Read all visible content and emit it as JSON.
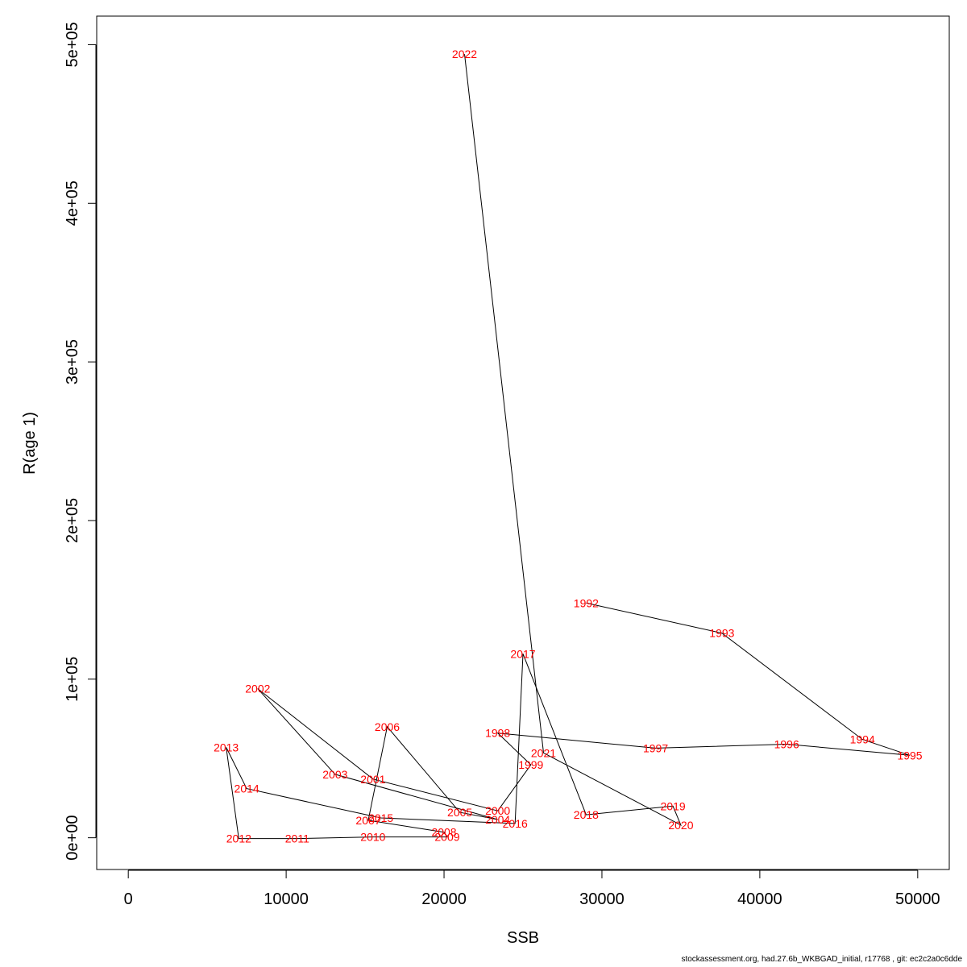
{
  "chart_data": {
    "type": "line",
    "xlabel": "SSB",
    "ylabel": "R(age 1)",
    "xlim": [
      -2000,
      52000
    ],
    "ylim": [
      -20000,
      518000
    ],
    "x_ticks": [
      0,
      10000,
      20000,
      30000,
      40000,
      50000
    ],
    "x_tick_labels": [
      "0",
      "10000",
      "20000",
      "30000",
      "40000",
      "50000"
    ],
    "y_ticks": [
      0,
      100000,
      200000,
      300000,
      400000,
      500000
    ],
    "y_tick_labels": [
      "0e+00",
      "1e+05",
      "2e+05",
      "3e+05",
      "4e+05",
      "5e+05"
    ],
    "grid": false,
    "line_color": "#000000",
    "label_color": "#ff0000",
    "points": [
      {
        "year": "1992",
        "ssb": 29000,
        "r": 148000
      },
      {
        "year": "1993",
        "ssb": 37600,
        "r": 129000
      },
      {
        "year": "1994",
        "ssb": 46500,
        "r": 62000
      },
      {
        "year": "1995",
        "ssb": 49500,
        "r": 52000
      },
      {
        "year": "1996",
        "ssb": 41700,
        "r": 59000
      },
      {
        "year": "1997",
        "ssb": 33400,
        "r": 56500
      },
      {
        "year": "1998",
        "ssb": 23400,
        "r": 66000
      },
      {
        "year": "1999",
        "ssb": 25500,
        "r": 46000
      },
      {
        "year": "2000",
        "ssb": 23400,
        "r": 17000
      },
      {
        "year": "2001",
        "ssb": 15500,
        "r": 37000
      },
      {
        "year": "2002",
        "ssb": 8200,
        "r": 94000
      },
      {
        "year": "2003",
        "ssb": 13100,
        "r": 40000
      },
      {
        "year": "2004",
        "ssb": 23400,
        "r": 11500
      },
      {
        "year": "2005",
        "ssb": 21000,
        "r": 16000
      },
      {
        "year": "2006",
        "ssb": 16400,
        "r": 70000
      },
      {
        "year": "2007",
        "ssb": 15200,
        "r": 11000
      },
      {
        "year": "2008",
        "ssb": 20000,
        "r": 3500
      },
      {
        "year": "2009",
        "ssb": 20200,
        "r": 500
      },
      {
        "year": "2010",
        "ssb": 15500,
        "r": 500
      },
      {
        "year": "2011",
        "ssb": 10700,
        "r": -500
      },
      {
        "year": "2012",
        "ssb": 7000,
        "r": -500
      },
      {
        "year": "2013",
        "ssb": 6200,
        "r": 57000
      },
      {
        "year": "2014",
        "ssb": 7500,
        "r": 31000
      },
      {
        "year": "2015",
        "ssb": 16000,
        "r": 12500
      },
      {
        "year": "2016",
        "ssb": 24500,
        "r": 9000
      },
      {
        "year": "2017",
        "ssb": 25000,
        "r": 116000
      },
      {
        "year": "2018",
        "ssb": 29000,
        "r": 14500
      },
      {
        "year": "2019",
        "ssb": 34500,
        "r": 20000
      },
      {
        "year": "2020",
        "ssb": 35000,
        "r": 8000
      },
      {
        "year": "2021",
        "ssb": 26300,
        "r": 53500
      },
      {
        "year": "2022",
        "ssb": 21300,
        "r": 494000
      }
    ]
  },
  "footer": {
    "text": "stockassessment.org, had.27.6b_WKBGAD_initial, r17768 , git: ec2c2a0c6dde"
  }
}
